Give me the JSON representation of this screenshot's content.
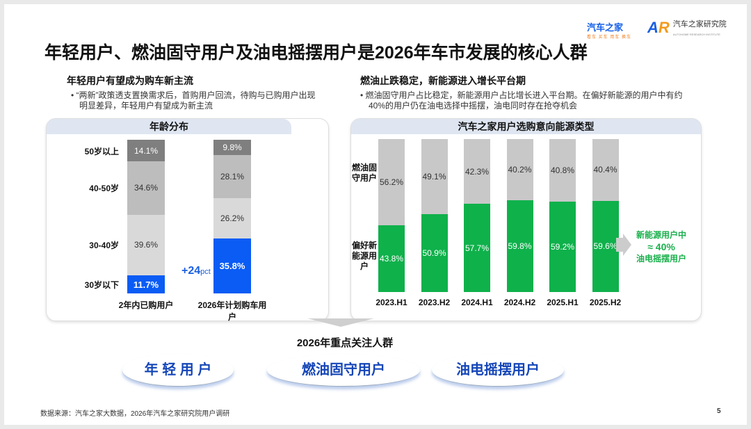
{
  "title": "年轻用户、燃油固守用户及油电摇摆用户是2026年车市发展的核心人群",
  "logos": {
    "autohome": "汽车之家",
    "autohome_tagline": "看车 买车 用车 换车",
    "institute": "汽车之家研究院",
    "institute_en": "AUTOHOME RESEARCH INSTITUTE",
    "mark": "AR"
  },
  "left": {
    "heading": "年轻用户有望成为购车新主流",
    "bullet": "“两新”政策透支置换需求后，首购用户回流，待购与已购用户出现明显差异，年轻用户有望成为新主流",
    "annotation": "+24",
    "annotation_unit": "pct"
  },
  "right": {
    "heading": "燃油止跌稳定，新能源进入增长平台期",
    "bullet": "燃油固守用户占比稳定，新能源用户占比增长进入平台期。在偏好新能源的用户中有约40%的用户仍在油电选择中摇摆，油电同时存在抢夺机会",
    "callout": [
      "新能源用户中",
      "≈ 40%",
      "油电摇摆用户"
    ]
  },
  "focus": {
    "heading": "2026年重点关注人群",
    "groups": [
      "年 轻 用 户",
      "燃油固守用户",
      "油电摇摆用户"
    ]
  },
  "footer": {
    "source": "数据来源：汽车之家大数据，2026年汽车之家研究院用户调研",
    "page": "5"
  },
  "colors": {
    "blue": "#0b5cf5",
    "green": "#0fb14b",
    "gray_dark": "#7f7f7f",
    "gray_mid": "#bdbdbd",
    "gray_light": "#d9d9d9",
    "accent_text": "#19b04c"
  },
  "chart_data": [
    {
      "type": "bar",
      "stacked": true,
      "title": "年龄分布",
      "categories": [
        "2年内已购用户",
        "2026年计划购车用户"
      ],
      "series": [
        {
          "name": "30岁以下",
          "values": [
            11.7,
            35.8
          ]
        },
        {
          "name": "30-40岁",
          "values": [
            39.6,
            26.2
          ]
        },
        {
          "name": "40-50岁",
          "values": [
            34.6,
            28.1
          ]
        },
        {
          "name": "50岁以上",
          "values": [
            14.1,
            9.8
          ]
        }
      ],
      "ylim": [
        0,
        100
      ],
      "grid": false
    },
    {
      "type": "bar",
      "stacked": true,
      "title": "汽车之家用户选购意向能源类型",
      "categories": [
        "2023.H1",
        "2023.H2",
        "2024.H1",
        "2024.H2",
        "2025.H1",
        "2025.H2"
      ],
      "series": [
        {
          "name": "偏好新能源用户",
          "values": [
            43.8,
            50.9,
            57.7,
            59.8,
            59.2,
            59.6
          ]
        },
        {
          "name": "燃油固守用户",
          "values": [
            56.2,
            49.1,
            42.3,
            40.2,
            40.8,
            40.4
          ]
        }
      ],
      "ylim": [
        0,
        100
      ],
      "grid": false
    }
  ]
}
